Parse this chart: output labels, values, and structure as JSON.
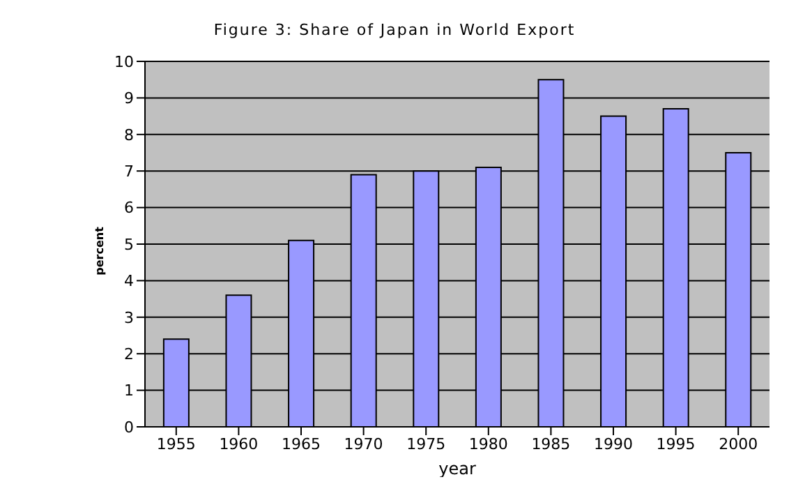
{
  "chart_data": {
    "type": "bar",
    "title": "Figure 3: Share of Japan in World Export",
    "xlabel": "year",
    "ylabel": "percent",
    "categories": [
      "1955",
      "1960",
      "1965",
      "1970",
      "1975",
      "1980",
      "1985",
      "1990",
      "1995",
      "2000"
    ],
    "values": [
      2.4,
      3.6,
      5.1,
      6.9,
      7.0,
      7.1,
      9.5,
      8.5,
      8.7,
      7.5
    ],
    "color": "#9999ff",
    "ylim": [
      0,
      10
    ],
    "yticks": [
      0,
      1,
      2,
      3,
      4,
      5,
      6,
      7,
      8,
      9,
      10
    ],
    "grid": "y",
    "legend": false
  }
}
